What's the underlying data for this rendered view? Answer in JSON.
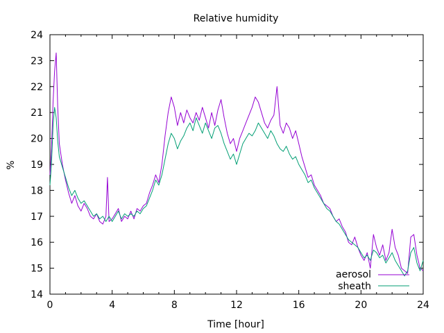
{
  "chart_data": {
    "type": "line",
    "title": "Relative humidity",
    "xlabel": "Time [hour]",
    "ylabel": "%",
    "xlim": [
      0,
      24
    ],
    "ylim": [
      14,
      24
    ],
    "xticks": [
      0,
      4,
      8,
      12,
      16,
      20,
      24
    ],
    "yticks": [
      14,
      15,
      16,
      17,
      18,
      19,
      20,
      21,
      22,
      23,
      24
    ],
    "legend_position": "bottom-right",
    "grid": false,
    "series": [
      {
        "name": "aerosol",
        "color": "#9400d3",
        "points": [
          [
            0.0,
            18.6
          ],
          [
            0.1,
            19.6
          ],
          [
            0.2,
            21.4
          ],
          [
            0.3,
            22.6
          ],
          [
            0.4,
            23.3
          ],
          [
            0.5,
            21.2
          ],
          [
            0.6,
            19.8
          ],
          [
            0.8,
            19.0
          ],
          [
            1.0,
            18.4
          ],
          [
            1.2,
            17.9
          ],
          [
            1.4,
            17.5
          ],
          [
            1.6,
            17.8
          ],
          [
            1.8,
            17.4
          ],
          [
            2.0,
            17.2
          ],
          [
            2.2,
            17.5
          ],
          [
            2.4,
            17.3
          ],
          [
            2.6,
            17.0
          ],
          [
            2.8,
            16.9
          ],
          [
            3.0,
            17.1
          ],
          [
            3.2,
            16.8
          ],
          [
            3.4,
            16.7
          ],
          [
            3.6,
            17.0
          ],
          [
            3.7,
            18.5
          ],
          [
            3.8,
            16.8
          ],
          [
            4.0,
            16.9
          ],
          [
            4.2,
            17.1
          ],
          [
            4.4,
            17.3
          ],
          [
            4.6,
            16.8
          ],
          [
            4.8,
            17.0
          ],
          [
            5.0,
            16.9
          ],
          [
            5.2,
            17.2
          ],
          [
            5.4,
            16.9
          ],
          [
            5.6,
            17.3
          ],
          [
            5.8,
            17.2
          ],
          [
            6.0,
            17.4
          ],
          [
            6.2,
            17.5
          ],
          [
            6.4,
            17.9
          ],
          [
            6.6,
            18.2
          ],
          [
            6.8,
            18.6
          ],
          [
            7.0,
            18.3
          ],
          [
            7.2,
            19.0
          ],
          [
            7.4,
            20.1
          ],
          [
            7.6,
            21.0
          ],
          [
            7.8,
            21.6
          ],
          [
            8.0,
            21.2
          ],
          [
            8.2,
            20.5
          ],
          [
            8.4,
            21.0
          ],
          [
            8.6,
            20.6
          ],
          [
            8.8,
            21.1
          ],
          [
            9.0,
            20.8
          ],
          [
            9.2,
            20.6
          ],
          [
            9.4,
            21.0
          ],
          [
            9.6,
            20.7
          ],
          [
            9.8,
            21.2
          ],
          [
            10.0,
            20.8
          ],
          [
            10.2,
            20.4
          ],
          [
            10.4,
            21.0
          ],
          [
            10.6,
            20.5
          ],
          [
            10.8,
            21.1
          ],
          [
            11.0,
            21.5
          ],
          [
            11.2,
            20.8
          ],
          [
            11.4,
            20.2
          ],
          [
            11.6,
            19.8
          ],
          [
            11.8,
            20.0
          ],
          [
            12.0,
            19.5
          ],
          [
            12.2,
            20.0
          ],
          [
            12.4,
            20.3
          ],
          [
            12.6,
            20.6
          ],
          [
            12.8,
            20.9
          ],
          [
            13.0,
            21.2
          ],
          [
            13.2,
            21.6
          ],
          [
            13.4,
            21.4
          ],
          [
            13.6,
            21.0
          ],
          [
            13.8,
            20.6
          ],
          [
            14.0,
            20.4
          ],
          [
            14.2,
            20.7
          ],
          [
            14.4,
            20.9
          ],
          [
            14.6,
            22.0
          ],
          [
            14.8,
            20.5
          ],
          [
            15.0,
            20.2
          ],
          [
            15.2,
            20.6
          ],
          [
            15.4,
            20.4
          ],
          [
            15.6,
            20.0
          ],
          [
            15.8,
            20.3
          ],
          [
            16.0,
            19.8
          ],
          [
            16.2,
            19.3
          ],
          [
            16.4,
            18.9
          ],
          [
            16.6,
            18.5
          ],
          [
            16.8,
            18.6
          ],
          [
            17.0,
            18.2
          ],
          [
            17.2,
            18.0
          ],
          [
            17.4,
            17.8
          ],
          [
            17.6,
            17.5
          ],
          [
            17.8,
            17.4
          ],
          [
            18.0,
            17.3
          ],
          [
            18.2,
            17.0
          ],
          [
            18.4,
            16.8
          ],
          [
            18.6,
            16.9
          ],
          [
            18.8,
            16.6
          ],
          [
            19.0,
            16.4
          ],
          [
            19.2,
            16.0
          ],
          [
            19.4,
            15.9
          ],
          [
            19.6,
            16.2
          ],
          [
            19.8,
            15.8
          ],
          [
            20.0,
            15.5
          ],
          [
            20.2,
            15.3
          ],
          [
            20.4,
            15.6
          ],
          [
            20.6,
            15.0
          ],
          [
            20.8,
            16.3
          ],
          [
            21.0,
            15.8
          ],
          [
            21.2,
            15.5
          ],
          [
            21.4,
            15.9
          ],
          [
            21.6,
            15.3
          ],
          [
            21.8,
            15.6
          ],
          [
            22.0,
            16.5
          ],
          [
            22.2,
            15.8
          ],
          [
            22.4,
            15.5
          ],
          [
            22.6,
            15.0
          ],
          [
            22.8,
            14.9
          ],
          [
            23.0,
            14.8
          ],
          [
            23.2,
            16.2
          ],
          [
            23.4,
            16.3
          ],
          [
            23.6,
            15.5
          ],
          [
            23.8,
            15.0
          ],
          [
            24.0,
            14.9
          ]
        ]
      },
      {
        "name": "sheath",
        "color": "#009e73",
        "points": [
          [
            0.0,
            18.2
          ],
          [
            0.1,
            19.0
          ],
          [
            0.2,
            20.5
          ],
          [
            0.3,
            21.2
          ],
          [
            0.4,
            20.8
          ],
          [
            0.5,
            19.9
          ],
          [
            0.6,
            19.3
          ],
          [
            0.8,
            18.9
          ],
          [
            1.0,
            18.5
          ],
          [
            1.2,
            18.1
          ],
          [
            1.4,
            17.8
          ],
          [
            1.6,
            18.0
          ],
          [
            1.8,
            17.7
          ],
          [
            2.0,
            17.5
          ],
          [
            2.2,
            17.6
          ],
          [
            2.4,
            17.4
          ],
          [
            2.6,
            17.2
          ],
          [
            2.8,
            17.0
          ],
          [
            3.0,
            17.1
          ],
          [
            3.2,
            16.9
          ],
          [
            3.4,
            17.0
          ],
          [
            3.6,
            16.8
          ],
          [
            3.8,
            17.0
          ],
          [
            4.0,
            16.8
          ],
          [
            4.2,
            17.0
          ],
          [
            4.4,
            17.2
          ],
          [
            4.6,
            16.9
          ],
          [
            4.8,
            17.1
          ],
          [
            5.0,
            17.0
          ],
          [
            5.2,
            17.1
          ],
          [
            5.4,
            17.0
          ],
          [
            5.6,
            17.2
          ],
          [
            5.8,
            17.1
          ],
          [
            6.0,
            17.3
          ],
          [
            6.2,
            17.4
          ],
          [
            6.4,
            17.7
          ],
          [
            6.6,
            18.0
          ],
          [
            6.8,
            18.4
          ],
          [
            7.0,
            18.2
          ],
          [
            7.2,
            18.6
          ],
          [
            7.4,
            19.2
          ],
          [
            7.6,
            19.8
          ],
          [
            7.8,
            20.2
          ],
          [
            8.0,
            20.0
          ],
          [
            8.2,
            19.6
          ],
          [
            8.4,
            19.9
          ],
          [
            8.6,
            20.1
          ],
          [
            8.8,
            20.4
          ],
          [
            9.0,
            20.6
          ],
          [
            9.2,
            20.3
          ],
          [
            9.4,
            20.8
          ],
          [
            9.6,
            20.5
          ],
          [
            9.8,
            20.2
          ],
          [
            10.0,
            20.6
          ],
          [
            10.2,
            20.3
          ],
          [
            10.4,
            20.0
          ],
          [
            10.6,
            20.4
          ],
          [
            10.8,
            20.5
          ],
          [
            11.0,
            20.2
          ],
          [
            11.2,
            19.8
          ],
          [
            11.4,
            19.5
          ],
          [
            11.6,
            19.2
          ],
          [
            11.8,
            19.4
          ],
          [
            12.0,
            19.0
          ],
          [
            12.2,
            19.4
          ],
          [
            12.4,
            19.8
          ],
          [
            12.6,
            20.0
          ],
          [
            12.8,
            20.2
          ],
          [
            13.0,
            20.1
          ],
          [
            13.2,
            20.3
          ],
          [
            13.4,
            20.6
          ],
          [
            13.6,
            20.4
          ],
          [
            13.8,
            20.2
          ],
          [
            14.0,
            20.0
          ],
          [
            14.2,
            20.3
          ],
          [
            14.4,
            20.1
          ],
          [
            14.6,
            19.8
          ],
          [
            14.8,
            19.6
          ],
          [
            15.0,
            19.5
          ],
          [
            15.2,
            19.7
          ],
          [
            15.4,
            19.4
          ],
          [
            15.6,
            19.2
          ],
          [
            15.8,
            19.3
          ],
          [
            16.0,
            19.0
          ],
          [
            16.2,
            18.8
          ],
          [
            16.4,
            18.6
          ],
          [
            16.6,
            18.3
          ],
          [
            16.8,
            18.4
          ],
          [
            17.0,
            18.1
          ],
          [
            17.2,
            17.9
          ],
          [
            17.4,
            17.7
          ],
          [
            17.6,
            17.5
          ],
          [
            17.8,
            17.3
          ],
          [
            18.0,
            17.2
          ],
          [
            18.2,
            17.0
          ],
          [
            18.4,
            16.8
          ],
          [
            18.6,
            16.7
          ],
          [
            18.8,
            16.5
          ],
          [
            19.0,
            16.3
          ],
          [
            19.2,
            16.1
          ],
          [
            19.4,
            16.0
          ],
          [
            19.6,
            15.9
          ],
          [
            19.8,
            15.8
          ],
          [
            20.0,
            15.6
          ],
          [
            20.2,
            15.4
          ],
          [
            20.4,
            15.5
          ],
          [
            20.6,
            15.3
          ],
          [
            20.8,
            15.7
          ],
          [
            21.0,
            15.6
          ],
          [
            21.2,
            15.4
          ],
          [
            21.4,
            15.5
          ],
          [
            21.6,
            15.2
          ],
          [
            21.8,
            15.4
          ],
          [
            22.0,
            15.6
          ],
          [
            22.2,
            15.3
          ],
          [
            22.4,
            15.1
          ],
          [
            22.6,
            14.9
          ],
          [
            22.8,
            14.7
          ],
          [
            23.0,
            14.9
          ],
          [
            23.2,
            15.6
          ],
          [
            23.4,
            15.8
          ],
          [
            23.6,
            15.2
          ],
          [
            23.8,
            14.9
          ],
          [
            24.0,
            15.3
          ]
        ]
      }
    ]
  }
}
